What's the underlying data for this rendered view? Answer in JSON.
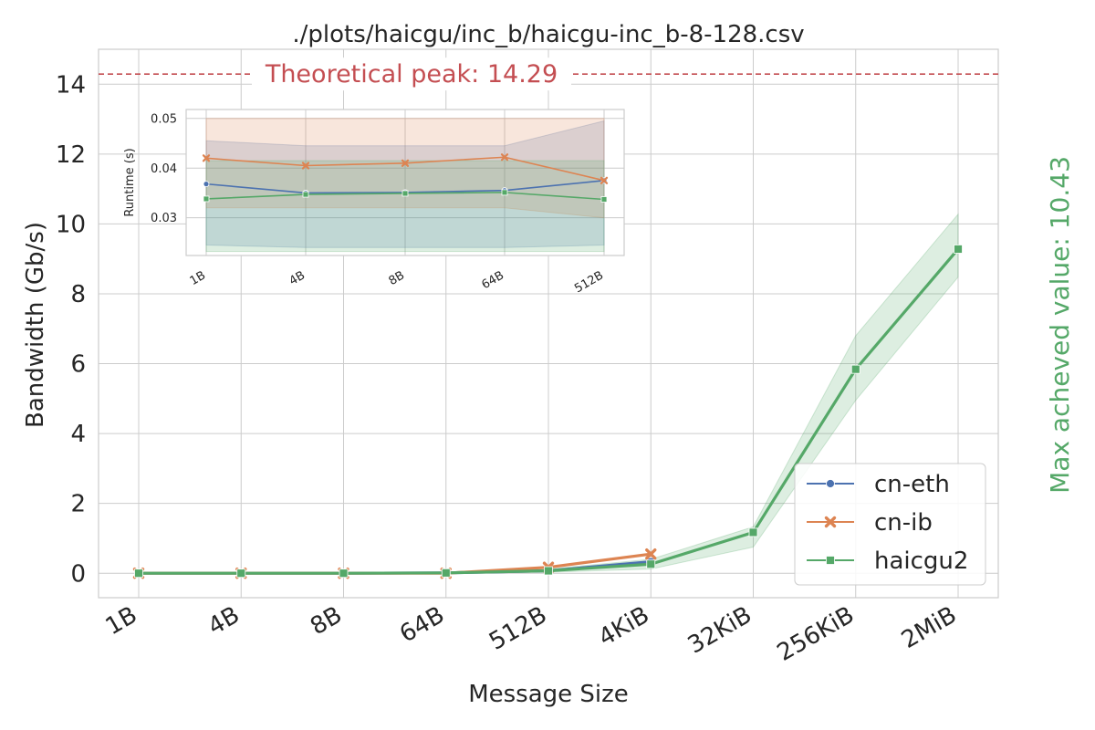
{
  "chart_data": [
    {
      "type": "line",
      "title": "./plots/haicgu/inc_b/haicgu-inc_b-8-128.csv",
      "xlabel": "Message Size",
      "ylabel": "Bandwidth (Gb/s)",
      "categories": [
        "1B",
        "4B",
        "8B",
        "64B",
        "512B",
        "4KiB",
        "32KiB",
        "256KiB",
        "2MiB"
      ],
      "ylim": [
        -0.7,
        15
      ],
      "yticks": [
        0,
        2,
        4,
        6,
        8,
        10,
        12,
        14
      ],
      "grid": true,
      "legend_position": "bottom-right",
      "series": [
        {
          "name": "cn-eth",
          "color": "#4c72b0",
          "marker": "circle",
          "values": [
            0.0,
            0.0,
            0.0,
            0.01,
            0.07,
            0.33,
            null,
            null,
            null
          ]
        },
        {
          "name": "cn-ib",
          "color": "#dd8452",
          "marker": "x",
          "values": [
            0.0,
            0.0,
            0.0,
            0.0,
            0.17,
            0.55,
            null,
            null,
            null
          ]
        },
        {
          "name": "haicgu2",
          "color": "#55a868",
          "marker": "square",
          "values": [
            0.0,
            0.0,
            0.0,
            0.01,
            0.07,
            0.26,
            1.17,
            5.84,
            9.28
          ],
          "band_low": [
            0.0,
            0.0,
            0.0,
            0.0,
            0.03,
            0.12,
            0.75,
            4.95,
            8.48
          ],
          "band_high": [
            0.02,
            0.02,
            0.02,
            0.03,
            0.12,
            0.4,
            1.33,
            6.8,
            10.28
          ]
        }
      ],
      "annotations": {
        "peak_label": "Theoretical peak: 14.29",
        "peak_value": 14.29,
        "peak_color": "#c44e52",
        "max_label": "Max acheved value: 10.43",
        "max_color": "#55a868"
      }
    },
    {
      "type": "line",
      "title": "",
      "xlabel": "",
      "ylabel": "Runtime (s)",
      "categories": [
        "1B",
        "4B",
        "8B",
        "64B",
        "512B"
      ],
      "ylim": [
        0.0224,
        0.0518
      ],
      "yticks": [
        0.03,
        0.04,
        0.05
      ],
      "grid": true,
      "series": [
        {
          "name": "cn-eth",
          "color": "#4c72b0",
          "marker": "circle",
          "values": [
            0.0368,
            0.035,
            0.0351,
            0.0355,
            0.0375
          ],
          "band_low": [
            0.0245,
            0.024,
            0.024,
            0.024,
            0.0245
          ],
          "band_high": [
            0.0455,
            0.0445,
            0.0445,
            0.0445,
            0.0495
          ]
        },
        {
          "name": "cn-ib",
          "color": "#dd8452",
          "marker": "x",
          "values": [
            0.042,
            0.0405,
            0.041,
            0.0422,
            0.0375
          ],
          "band_low": [
            0.032,
            0.032,
            0.032,
            0.032,
            0.03
          ],
          "band_high": [
            0.05,
            0.05,
            0.05,
            0.05,
            0.05
          ]
        },
        {
          "name": "haicgu2",
          "color": "#55a868",
          "marker": "square",
          "values": [
            0.0338,
            0.0347,
            0.0349,
            0.0351,
            0.0337
          ],
          "band_low": [
            0.0232,
            0.0232,
            0.0232,
            0.0232,
            0.0232
          ],
          "band_high": [
            0.0415,
            0.0415,
            0.0415,
            0.0415,
            0.0415
          ]
        }
      ]
    }
  ]
}
